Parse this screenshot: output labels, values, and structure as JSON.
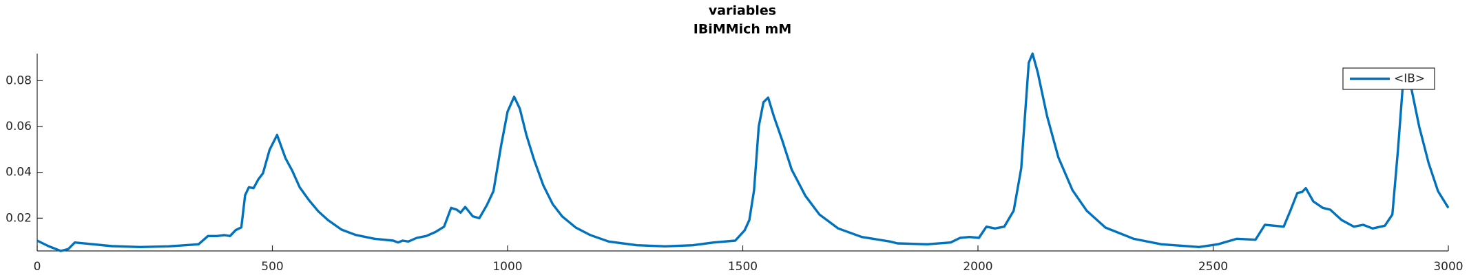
{
  "chart_data": {
    "type": "line",
    "title": "variables",
    "subtitle": "IBiMMich mM",
    "xlim": [
      0,
      3000
    ],
    "xticks": [
      0,
      500,
      1000,
      1500,
      2000,
      2500,
      3000
    ],
    "ylim": [
      0.0057,
      0.0918
    ],
    "yticks": [
      0.02,
      0.04,
      0.06,
      0.08
    ],
    "legend_position": "upper right",
    "x": [
      0,
      24,
      50,
      66,
      80,
      110,
      159,
      219,
      279,
      343,
      363,
      382,
      398,
      410,
      422,
      434,
      442,
      450,
      460,
      470,
      480,
      494,
      510,
      528,
      542,
      558,
      578,
      598,
      618,
      647,
      677,
      717,
      757,
      767,
      777,
      789,
      807,
      827,
      847,
      865,
      880,
      892,
      900,
      910,
      926,
      940,
      956,
      970,
      986,
      1000,
      1014,
      1026,
      1040,
      1056,
      1076,
      1096,
      1116,
      1145,
      1175,
      1215,
      1275,
      1335,
      1394,
      1438,
      1484,
      1504,
      1514,
      1524,
      1534,
      1544,
      1554,
      1566,
      1584,
      1604,
      1633,
      1663,
      1703,
      1753,
      1813,
      1829,
      1892,
      1942,
      1962,
      1982,
      2002,
      2018,
      2036,
      2056,
      2076,
      2092,
      2108,
      2116,
      2127,
      2147,
      2171,
      2201,
      2231,
      2271,
      2331,
      2390,
      2470,
      2510,
      2550,
      2590,
      2610,
      2630,
      2650,
      2665,
      2679,
      2689,
      2697,
      2713,
      2733,
      2749,
      2773,
      2799,
      2819,
      2839,
      2865,
      2881,
      2893,
      2904,
      2912,
      2920,
      2938,
      2958,
      2978,
      3000
    ],
    "series": [
      {
        "name": "<IB>",
        "color": "#0072bd",
        "values": [
          0.0102,
          0.0078,
          0.0057,
          0.0065,
          0.0094,
          0.0088,
          0.0078,
          0.0074,
          0.0077,
          0.0086,
          0.0122,
          0.0122,
          0.0126,
          0.0122,
          0.0148,
          0.016,
          0.03,
          0.0335,
          0.0331,
          0.0369,
          0.0396,
          0.0498,
          0.0563,
          0.0461,
          0.0408,
          0.0335,
          0.0278,
          0.0229,
          0.0192,
          0.015,
          0.0127,
          0.011,
          0.0102,
          0.0094,
          0.0102,
          0.0098,
          0.0114,
          0.0122,
          0.014,
          0.0163,
          0.0245,
          0.0237,
          0.0224,
          0.0249,
          0.0208,
          0.02,
          0.0257,
          0.0318,
          0.0514,
          0.0665,
          0.073,
          0.0678,
          0.0563,
          0.0457,
          0.0343,
          0.0261,
          0.0208,
          0.0159,
          0.0127,
          0.0098,
          0.0082,
          0.0077,
          0.0082,
          0.0094,
          0.0102,
          0.0147,
          0.0192,
          0.0322,
          0.06,
          0.0706,
          0.0726,
          0.0645,
          0.0539,
          0.0412,
          0.0298,
          0.0216,
          0.0155,
          0.0118,
          0.0098,
          0.009,
          0.0086,
          0.0094,
          0.0114,
          0.0118,
          0.0114,
          0.0163,
          0.0155,
          0.0163,
          0.0233,
          0.0418,
          0.0878,
          0.0918,
          0.0837,
          0.0645,
          0.0465,
          0.0322,
          0.0233,
          0.0159,
          0.011,
          0.0086,
          0.0074,
          0.0086,
          0.011,
          0.0106,
          0.0171,
          0.0167,
          0.0163,
          0.0237,
          0.031,
          0.0314,
          0.0331,
          0.0273,
          0.0245,
          0.0237,
          0.0192,
          0.0163,
          0.0171,
          0.0155,
          0.0167,
          0.0216,
          0.05,
          0.08,
          0.0837,
          0.078,
          0.06,
          0.0441,
          0.0318,
          0.0245
        ]
      }
    ]
  }
}
